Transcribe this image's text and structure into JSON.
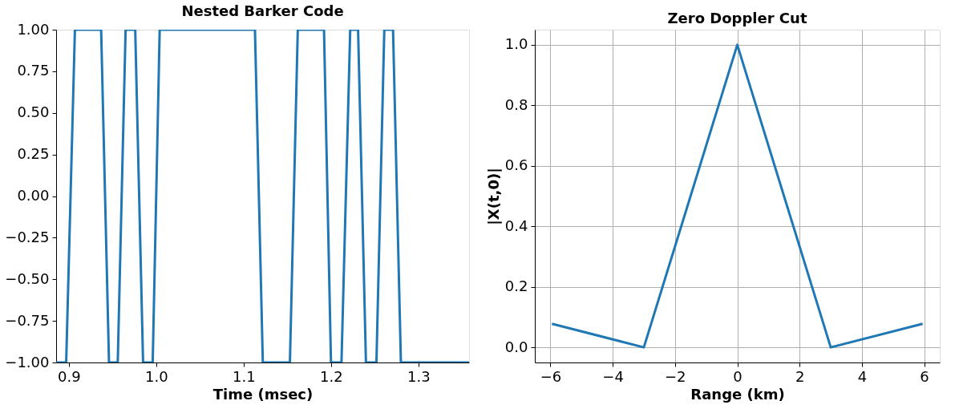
{
  "chart_data": [
    {
      "type": "line",
      "title": "Nested Barker Code",
      "xlabel": "Time (msec)",
      "xlim": [
        0.8855,
        1.358
      ],
      "ylim": [
        -1.0,
        1.0
      ],
      "xticks": [
        0.9,
        {
          "value": 1,
          "label": "1.0"
        },
        1.1,
        1.2,
        1.3
      ],
      "yticks": [
        {
          "value": -1,
          "label": "−1.00"
        },
        {
          "value": -0.75,
          "label": "−0.75"
        },
        {
          "value": -0.5,
          "label": "−0.50"
        },
        {
          "value": -0.25,
          "label": "−0.25"
        },
        {
          "value": 0,
          "label": "0.00"
        },
        0.25,
        {
          "value": 0.5,
          "label": "0.50"
        },
        0.75,
        {
          "value": 1,
          "label": "1.00"
        }
      ],
      "grid": false,
      "series": [
        {
          "color": "#1f77b4",
          "x": [
            0.8855,
            0.897,
            0.907,
            0.937,
            0.946,
            0.956,
            0.965,
            0.976,
            0.985,
            0.996,
            1.004,
            1.113,
            1.122,
            1.153,
            1.162,
            1.192,
            1.2,
            1.212,
            1.222,
            1.231,
            1.24,
            1.252,
            1.261,
            1.271,
            1.28,
            1.358
          ],
          "values": [
            -1,
            -1,
            1,
            1,
            -1,
            -1,
            1,
            1,
            -1,
            -1,
            1,
            1,
            -1,
            -1,
            1,
            1,
            -1,
            -1,
            1,
            1,
            -1,
            -1,
            1,
            1,
            -1,
            -1
          ]
        }
      ]
    },
    {
      "type": "line",
      "title": "Zero Doppler Cut",
      "xlabel": "Range (km)",
      "ylabel": "|X(t,0)|",
      "xlim": [
        -6.5,
        6.5
      ],
      "ylim": [
        -0.05,
        1.05
      ],
      "xticks": [
        {
          "value": -6,
          "label": "−6"
        },
        {
          "value": -4,
          "label": "−4"
        },
        {
          "value": -2,
          "label": "−2"
        },
        0,
        2,
        4,
        6
      ],
      "yticks": [
        {
          "value": 0,
          "label": "0.0"
        },
        0.2,
        0.4,
        0.6,
        0.8,
        {
          "value": 1,
          "label": "1.0"
        }
      ],
      "grid": true,
      "series": [
        {
          "color": "#1f77b4",
          "x": [
            -5.95,
            -3,
            0,
            3,
            5.95
          ],
          "values": [
            0.078,
            0,
            1,
            0,
            0.078
          ]
        }
      ]
    }
  ]
}
